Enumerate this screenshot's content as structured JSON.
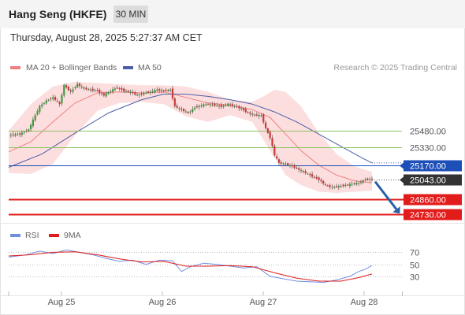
{
  "header": {
    "title": "Hang Seng (HKFE)",
    "timeframe_button": "30 MIN"
  },
  "datetime": "Thursday, August 28, 2025 5:27:37 AM CET",
  "legend": {
    "ma20_label": "MA 20 + Bollinger Bands",
    "ma50_label": "MA 50",
    "copyright": "Research © 2025 Trading Central",
    "rsi_label": "RSI",
    "ma9_label": "9MA"
  },
  "colors": {
    "ma20": "#f08080",
    "bollinger": "#fbd3d3",
    "ma50": "#4a5fa8",
    "green_level": "#8ec461",
    "blue_level": "#1d4fb8",
    "red_level": "#e21b1b",
    "current": "#333333",
    "candle_up": "#3d9a3d",
    "candle_down": "#c73a3a",
    "rsi": "#6f8fe0",
    "rsi_ma": "#e21b1b",
    "arrow": "#2a5fa8"
  },
  "chart_data": {
    "type": "candlestick",
    "instrument": "Hang Seng (HKFE)",
    "interval": "30 MIN",
    "x_tick_labels": [
      "Aug 25",
      "Aug 26",
      "Aug 27",
      "Aug 28"
    ],
    "ylim": [
      24650,
      25970
    ],
    "close_path": [
      {
        "t": 0,
        "v": 25440
      },
      {
        "t": 5,
        "v": 25450
      },
      {
        "t": 9,
        "v": 25490
      },
      {
        "t": 12,
        "v": 25620
      },
      {
        "t": 14,
        "v": 25700
      },
      {
        "t": 17,
        "v": 25750
      },
      {
        "t": 20,
        "v": 25780
      },
      {
        "t": 23,
        "v": 25720
      },
      {
        "t": 25,
        "v": 25890
      },
      {
        "t": 28,
        "v": 25830
      },
      {
        "t": 31,
        "v": 25900
      },
      {
        "t": 34,
        "v": 25860
      },
      {
        "t": 37,
        "v": 25850
      },
      {
        "t": 40,
        "v": 25840
      },
      {
        "t": 43,
        "v": 25800
      },
      {
        "t": 46,
        "v": 25840
      },
      {
        "t": 49,
        "v": 25870
      },
      {
        "t": 52,
        "v": 25840
      },
      {
        "t": 55,
        "v": 25830
      },
      {
        "t": 58,
        "v": 25800
      },
      {
        "t": 61,
        "v": 25820
      },
      {
        "t": 64,
        "v": 25830
      },
      {
        "t": 67,
        "v": 25850
      },
      {
        "t": 70,
        "v": 25840
      },
      {
        "t": 73,
        "v": 25850
      },
      {
        "t": 75,
        "v": 25700
      },
      {
        "t": 78,
        "v": 25670
      },
      {
        "t": 81,
        "v": 25640
      },
      {
        "t": 84,
        "v": 25690
      },
      {
        "t": 87,
        "v": 25710
      },
      {
        "t": 90,
        "v": 25720
      },
      {
        "t": 93,
        "v": 25710
      },
      {
        "t": 96,
        "v": 25700
      },
      {
        "t": 99,
        "v": 25720
      },
      {
        "t": 102,
        "v": 25700
      },
      {
        "t": 105,
        "v": 25680
      },
      {
        "t": 108,
        "v": 25640
      },
      {
        "t": 111,
        "v": 25620
      },
      {
        "t": 114,
        "v": 25620
      },
      {
        "t": 116,
        "v": 25500
      },
      {
        "t": 118,
        "v": 25420
      },
      {
        "t": 120,
        "v": 25260
      },
      {
        "t": 122,
        "v": 25190
      },
      {
        "t": 125,
        "v": 25180
      },
      {
        "t": 128,
        "v": 25160
      },
      {
        "t": 131,
        "v": 25130
      },
      {
        "t": 134,
        "v": 25100
      },
      {
        "t": 137,
        "v": 25070
      },
      {
        "t": 140,
        "v": 25040
      },
      {
        "t": 143,
        "v": 24990
      },
      {
        "t": 146,
        "v": 24970
      },
      {
        "t": 149,
        "v": 24980
      },
      {
        "t": 152,
        "v": 24990
      },
      {
        "t": 155,
        "v": 25000
      },
      {
        "t": 158,
        "v": 25010
      },
      {
        "t": 161,
        "v": 25040
      },
      {
        "t": 164,
        "v": 25043
      }
    ],
    "ma50_path": [
      {
        "t": 0,
        "v": 25150
      },
      {
        "t": 15,
        "v": 25270
      },
      {
        "t": 30,
        "v": 25460
      },
      {
        "t": 45,
        "v": 25640
      },
      {
        "t": 60,
        "v": 25760
      },
      {
        "t": 70,
        "v": 25810
      },
      {
        "t": 80,
        "v": 25810
      },
      {
        "t": 90,
        "v": 25790
      },
      {
        "t": 100,
        "v": 25760
      },
      {
        "t": 110,
        "v": 25720
      },
      {
        "t": 120,
        "v": 25650
      },
      {
        "t": 130,
        "v": 25560
      },
      {
        "t": 140,
        "v": 25450
      },
      {
        "t": 150,
        "v": 25340
      },
      {
        "t": 160,
        "v": 25230
      },
      {
        "t": 164,
        "v": 25190
      }
    ],
    "ma20_path": [
      {
        "t": 0,
        "v": 25290
      },
      {
        "t": 10,
        "v": 25380
      },
      {
        "t": 20,
        "v": 25560
      },
      {
        "t": 30,
        "v": 25730
      },
      {
        "t": 40,
        "v": 25820
      },
      {
        "t": 50,
        "v": 25830
      },
      {
        "t": 60,
        "v": 25820
      },
      {
        "t": 70,
        "v": 25830
      },
      {
        "t": 80,
        "v": 25780
      },
      {
        "t": 90,
        "v": 25730
      },
      {
        "t": 100,
        "v": 25710
      },
      {
        "t": 110,
        "v": 25670
      },
      {
        "t": 118,
        "v": 25600
      },
      {
        "t": 125,
        "v": 25450
      },
      {
        "t": 132,
        "v": 25300
      },
      {
        "t": 140,
        "v": 25170
      },
      {
        "t": 148,
        "v": 25080
      },
      {
        "t": 156,
        "v": 25030
      },
      {
        "t": 164,
        "v": 25010
      }
    ],
    "bb_upper_path": [
      {
        "t": 0,
        "v": 25480
      },
      {
        "t": 10,
        "v": 25720
      },
      {
        "t": 20,
        "v": 25880
      },
      {
        "t": 30,
        "v": 25920
      },
      {
        "t": 40,
        "v": 25910
      },
      {
        "t": 50,
        "v": 25900
      },
      {
        "t": 60,
        "v": 25890
      },
      {
        "t": 70,
        "v": 25890
      },
      {
        "t": 80,
        "v": 25880
      },
      {
        "t": 90,
        "v": 25830
      },
      {
        "t": 100,
        "v": 25760
      },
      {
        "t": 110,
        "v": 25740
      },
      {
        "t": 115,
        "v": 25790
      },
      {
        "t": 120,
        "v": 25850
      },
      {
        "t": 125,
        "v": 25830
      },
      {
        "t": 132,
        "v": 25700
      },
      {
        "t": 140,
        "v": 25460
      },
      {
        "t": 148,
        "v": 25270
      },
      {
        "t": 156,
        "v": 25160
      },
      {
        "t": 164,
        "v": 25110
      }
    ],
    "bb_lower_path": [
      {
        "t": 0,
        "v": 25100
      },
      {
        "t": 10,
        "v": 25090
      },
      {
        "t": 20,
        "v": 25180
      },
      {
        "t": 30,
        "v": 25440
      },
      {
        "t": 40,
        "v": 25660
      },
      {
        "t": 50,
        "v": 25730
      },
      {
        "t": 60,
        "v": 25740
      },
      {
        "t": 70,
        "v": 25720
      },
      {
        "t": 80,
        "v": 25610
      },
      {
        "t": 90,
        "v": 25560
      },
      {
        "t": 100,
        "v": 25620
      },
      {
        "t": 110,
        "v": 25560
      },
      {
        "t": 118,
        "v": 25300
      },
      {
        "t": 125,
        "v": 25080
      },
      {
        "t": 132,
        "v": 24990
      },
      {
        "t": 140,
        "v": 24930
      },
      {
        "t": 148,
        "v": 24920
      },
      {
        "t": 156,
        "v": 24930
      },
      {
        "t": 164,
        "v": 24940
      }
    ],
    "levels": [
      {
        "label": "25480.00",
        "value": 25480,
        "kind": "resistance"
      },
      {
        "label": "25330.00",
        "value": 25330,
        "kind": "resistance"
      },
      {
        "label": "25170.00",
        "value": 25170,
        "kind": "pivot"
      },
      {
        "label": "25043.00",
        "value": 25043,
        "kind": "current"
      },
      {
        "label": "24860.00",
        "value": 24860,
        "kind": "support"
      },
      {
        "label": "24730.00",
        "value": 24730,
        "kind": "support"
      }
    ],
    "forecast_arrow": {
      "from": 25043,
      "to": 24730
    },
    "rsi": {
      "ylim": [
        5,
        85
      ],
      "tick_labels": [
        "70",
        "50",
        "30"
      ],
      "tick_values": [
        70,
        50,
        30
      ],
      "rsi_path": [
        {
          "t": 0,
          "v": 62
        },
        {
          "t": 8,
          "v": 66
        },
        {
          "t": 14,
          "v": 72
        },
        {
          "t": 20,
          "v": 68
        },
        {
          "t": 26,
          "v": 74
        },
        {
          "t": 32,
          "v": 70
        },
        {
          "t": 38,
          "v": 66
        },
        {
          "t": 44,
          "v": 60
        },
        {
          "t": 50,
          "v": 55
        },
        {
          "t": 56,
          "v": 57
        },
        {
          "t": 62,
          "v": 50
        },
        {
          "t": 68,
          "v": 57
        },
        {
          "t": 74,
          "v": 56
        },
        {
          "t": 78,
          "v": 38
        },
        {
          "t": 82,
          "v": 46
        },
        {
          "t": 88,
          "v": 52
        },
        {
          "t": 94,
          "v": 50
        },
        {
          "t": 100,
          "v": 47
        },
        {
          "t": 106,
          "v": 44
        },
        {
          "t": 112,
          "v": 46
        },
        {
          "t": 118,
          "v": 30
        },
        {
          "t": 124,
          "v": 26
        },
        {
          "t": 130,
          "v": 22
        },
        {
          "t": 136,
          "v": 21
        },
        {
          "t": 142,
          "v": 20
        },
        {
          "t": 148,
          "v": 24
        },
        {
          "t": 154,
          "v": 30
        },
        {
          "t": 158,
          "v": 38
        },
        {
          "t": 161,
          "v": 42
        },
        {
          "t": 164,
          "v": 48
        }
      ],
      "ma9_path": [
        {
          "t": 0,
          "v": 64
        },
        {
          "t": 10,
          "v": 66
        },
        {
          "t": 20,
          "v": 70
        },
        {
          "t": 30,
          "v": 71
        },
        {
          "t": 40,
          "v": 66
        },
        {
          "t": 50,
          "v": 59
        },
        {
          "t": 60,
          "v": 54
        },
        {
          "t": 70,
          "v": 55
        },
        {
          "t": 80,
          "v": 47
        },
        {
          "t": 90,
          "v": 47
        },
        {
          "t": 100,
          "v": 48
        },
        {
          "t": 110,
          "v": 46
        },
        {
          "t": 120,
          "v": 36
        },
        {
          "t": 130,
          "v": 27
        },
        {
          "t": 140,
          "v": 22
        },
        {
          "t": 150,
          "v": 22
        },
        {
          "t": 158,
          "v": 28
        },
        {
          "t": 164,
          "v": 34
        }
      ]
    }
  }
}
